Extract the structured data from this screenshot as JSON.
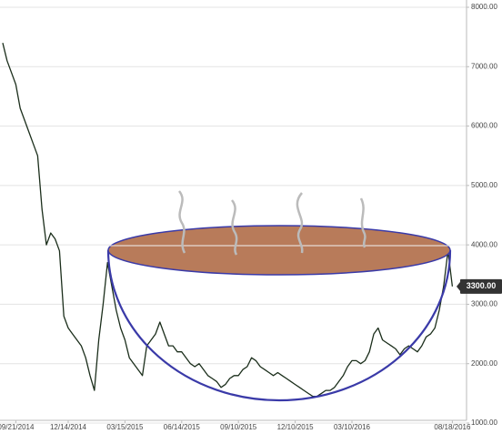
{
  "chart_data": {
    "type": "line",
    "categories": [
      null,
      null,
      null,
      "09/21/2014",
      null,
      null,
      null,
      null,
      null,
      null,
      null,
      null,
      null,
      null,
      null,
      "12/14/2014",
      null,
      null,
      null,
      null,
      null,
      null,
      null,
      null,
      null,
      null,
      null,
      null,
      "03/15/2015",
      null,
      null,
      null,
      null,
      null,
      null,
      null,
      null,
      null,
      null,
      null,
      null,
      "06/14/2015",
      null,
      null,
      null,
      null,
      null,
      null,
      null,
      null,
      null,
      null,
      null,
      null,
      "09/10/2015",
      null,
      null,
      null,
      null,
      null,
      null,
      null,
      null,
      null,
      null,
      null,
      null,
      "12/10/2015",
      null,
      null,
      null,
      null,
      null,
      null,
      null,
      null,
      null,
      null,
      null,
      null,
      "03/10/2016",
      null,
      null,
      null,
      null,
      null,
      null,
      null,
      null,
      null,
      null,
      null,
      null,
      null,
      null,
      null,
      null,
      null,
      null,
      null,
      null,
      null,
      null,
      "08/18/2016"
    ],
    "series": [
      {
        "color": "#1b2e1b",
        "values": [
          7400,
          7100,
          6900,
          6700,
          6300,
          6100,
          5900,
          5700,
          5500,
          4600,
          4000,
          4200,
          4100,
          3900,
          2800,
          2600,
          2500,
          2400,
          2300,
          2100,
          1800,
          1550,
          2400,
          3000,
          3700,
          3300,
          2900,
          2600,
          2400,
          2100,
          2000,
          1900,
          1800,
          2300,
          2400,
          2500,
          2700,
          2500,
          2300,
          2300,
          2200,
          2200,
          2100,
          2000,
          1950,
          2000,
          1900,
          1800,
          1750,
          1700,
          1600,
          1650,
          1750,
          1800,
          1800,
          1900,
          1950,
          2100,
          2050,
          1950,
          1900,
          1850,
          1800,
          1850,
          1800,
          1750,
          1700,
          1650,
          1600,
          1550,
          1500,
          1450,
          1450,
          1500,
          1550,
          1550,
          1600,
          1700,
          1800,
          1950,
          2050,
          2050,
          2000,
          2050,
          2200,
          2500,
          2600,
          2400,
          2350,
          2300,
          2250,
          2150,
          2250,
          2300,
          2250,
          2200,
          2300,
          2450,
          2500,
          2600,
          2900,
          3300,
          3900,
          3300
        ]
      }
    ],
    "ylim": [
      1000,
      8000
    ],
    "yticks": [
      {
        "value": 1000,
        "label": "1000.00"
      },
      {
        "value": 2000,
        "label": "2000.00"
      },
      {
        "value": 3000,
        "label": "3000.00"
      },
      {
        "value": 4000,
        "label": "4000.00"
      },
      {
        "value": 5000,
        "label": "5000.00"
      },
      {
        "value": 6000,
        "label": "6000.00"
      },
      {
        "value": 7000,
        "label": "7000.00"
      },
      {
        "value": 8000,
        "label": "8000.00"
      }
    ],
    "grid": true,
    "price_marker": {
      "value": 3300,
      "label": "3300.00"
    }
  }
}
